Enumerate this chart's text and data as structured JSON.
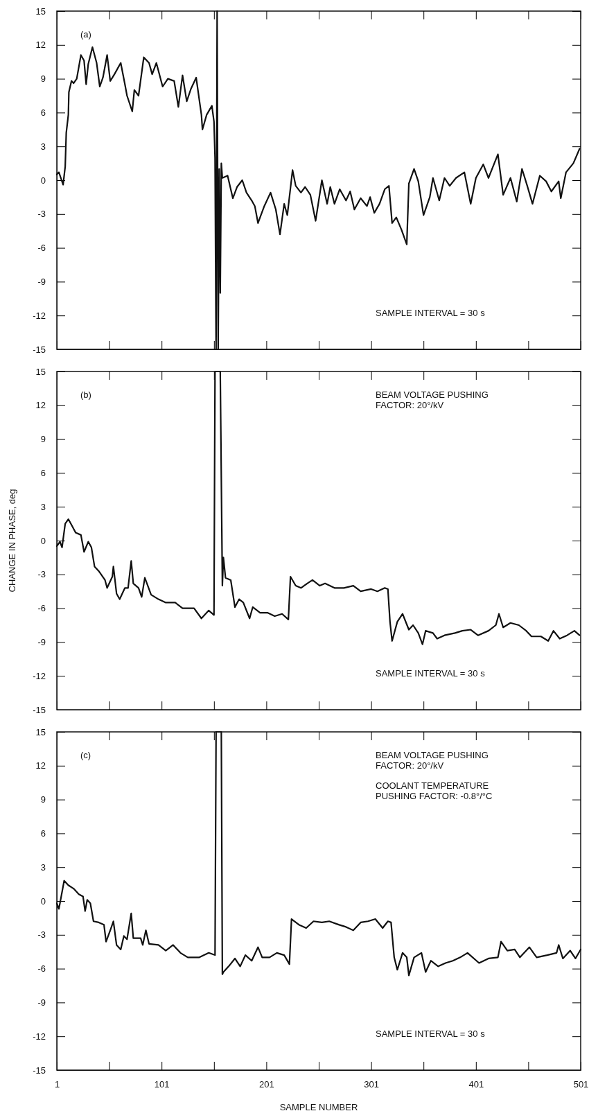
{
  "chart_data": [
    {
      "type": "line",
      "annotations": [
        "(a)",
        "SAMPLE INTERVAL = 30 s"
      ],
      "xlim": [
        1,
        501
      ],
      "xticks": [
        1,
        {
          "value": 51,
          "label": null
        },
        101,
        {
          "value": 151,
          "label": null
        },
        201,
        {
          "value": 251,
          "label": null
        },
        301,
        {
          "value": 351,
          "label": null
        },
        401,
        {
          "value": 451,
          "label": null
        },
        501
      ],
      "ylim": [
        -15,
        15
      ],
      "yticks": [
        -15,
        -12,
        -9,
        -6,
        -3,
        0,
        3,
        6,
        9,
        12,
        15
      ],
      "tick_labels": "y",
      "series": [
        {
          "color": "#111111",
          "x": [
            1,
            3,
            7,
            9,
            10,
            12,
            12.5,
            15,
            17,
            20,
            24,
            27,
            29,
            31,
            35,
            39,
            42,
            45,
            49,
            52,
            56,
            62,
            66,
            68,
            73,
            75,
            79,
            84,
            89,
            92,
            96,
            102,
            107,
            113,
            117,
            121,
            125,
            129,
            134,
            139,
            140,
            144,
            149,
            151,
            152,
            153,
            154,
            155,
            156,
            157,
            158,
            159,
            164,
            169,
            173,
            178,
            182,
            187,
            190,
            193,
            199,
            205,
            210,
            214,
            218,
            221,
            226,
            229,
            234,
            238,
            243,
            248,
            254,
            259,
            262,
            266,
            271,
            277,
            281,
            285,
            291,
            297,
            300,
            304,
            309,
            314,
            318,
            321,
            325,
            330,
            335,
            337,
            342,
            346,
            351,
            357,
            360,
            366,
            371,
            376,
            382,
            390,
            396,
            401,
            408,
            413,
            422,
            427,
            434,
            440,
            445,
            450,
            455,
            462,
            468,
            473,
            480,
            482,
            487,
            494,
            500
          ],
          "values": [
            0.5,
            0.7,
            -0.4,
            1.2,
            4.2,
            5.8,
            7.8,
            8.8,
            8.6,
            9.0,
            11.1,
            10.6,
            8.5,
            10.3,
            11.8,
            10.4,
            8.3,
            9.1,
            11.1,
            8.8,
            9.4,
            10.4,
            8.5,
            7.5,
            6.1,
            8.0,
            7.5,
            10.9,
            10.4,
            9.4,
            10.4,
            8.3,
            9.0,
            8.8,
            6.5,
            9.3,
            7.0,
            8.1,
            9.1,
            5.8,
            4.5,
            5.8,
            6.6,
            5.2,
            2.0,
            -15,
            15,
            -15,
            1.0,
            -10,
            1.5,
            0.2,
            0.4,
            -1.6,
            -0.6,
            0,
            -1.1,
            -1.8,
            -2.3,
            -3.8,
            -2.3,
            -1.1,
            -2.6,
            -4.8,
            -2.1,
            -3.1,
            0.9,
            -0.5,
            -1.1,
            -0.6,
            -1.3,
            -3.6,
            0,
            -2.1,
            -0.6,
            -2.1,
            -0.8,
            -1.8,
            -1.0,
            -2.6,
            -1.6,
            -2.3,
            -1.5,
            -2.9,
            -2.1,
            -0.8,
            -0.5,
            -3.8,
            -3.3,
            -4.4,
            -5.7,
            -0.3,
            1.0,
            -0.1,
            -3.1,
            -1.5,
            0.2,
            -1.8,
            0.2,
            -0.5,
            0.2,
            0.7,
            -2.1,
            0.2,
            1.4,
            0.2,
            2.3,
            -1.3,
            0.2,
            -1.9,
            1.0,
            -0.5,
            -2.1,
            0.4,
            -0.1,
            -1.0,
            -0.1,
            -1.6,
            0.7,
            1.5,
            2.8
          ]
        }
      ]
    },
    {
      "type": "line",
      "ylabel": "CHANGE IN PHASE, deg",
      "annotations": [
        "(b)",
        "BEAM VOLTAGE PUSHING\nFACTOR:  20°/kV",
        "SAMPLE INTERVAL = 30 s"
      ],
      "xlim": [
        1,
        501
      ],
      "xticks": [
        1,
        {
          "value": 51,
          "label": null
        },
        101,
        {
          "value": 151,
          "label": null
        },
        201,
        {
          "value": 251,
          "label": null
        },
        301,
        {
          "value": 351,
          "label": null
        },
        401,
        {
          "value": 451,
          "label": null
        },
        501
      ],
      "ylim": [
        -15,
        15
      ],
      "yticks": [
        -15,
        -12,
        -9,
        -6,
        -3,
        0,
        3,
        6,
        9,
        12,
        15
      ],
      "tick_labels": "y",
      "series": [
        {
          "color": "#111111",
          "x": [
            1,
            4,
            6,
            9,
            12,
            15,
            19,
            24,
            27,
            31,
            34,
            37,
            41,
            47,
            49,
            54,
            55,
            58,
            61,
            66,
            69,
            72,
            74,
            79,
            82,
            85,
            91,
            98,
            105,
            114,
            121,
            132,
            139,
            146,
            151,
            152,
            157,
            159,
            160,
            162,
            167,
            171,
            175,
            179,
            185,
            188,
            195,
            202,
            209,
            216,
            222,
            224,
            229,
            234,
            240,
            245,
            252,
            257,
            266,
            275,
            284,
            291,
            301,
            307,
            314,
            317,
            319,
            321,
            326,
            331,
            337,
            341,
            346,
            350,
            353,
            360,
            364,
            371,
            381,
            388,
            396,
            403,
            413,
            420,
            423,
            427,
            434,
            442,
            449,
            454,
            463,
            470,
            475,
            481,
            488,
            495,
            500
          ],
          "values": [
            -0.5,
            -0.1,
            -0.6,
            1.5,
            1.9,
            1.4,
            0.7,
            0.5,
            -1.0,
            -0.1,
            -0.6,
            -2.3,
            -2.7,
            -3.5,
            -4.2,
            -3.2,
            -2.3,
            -4.7,
            -5.2,
            -4.2,
            -4.2,
            -1.8,
            -3.8,
            -4.2,
            -5.0,
            -3.3,
            -4.8,
            -5.2,
            -5.5,
            -5.5,
            -6.0,
            -6.0,
            -6.9,
            -6.2,
            -6.6,
            15,
            15,
            -4.0,
            -1.5,
            -3.3,
            -3.5,
            -5.9,
            -5.2,
            -5.5,
            -6.9,
            -5.9,
            -6.4,
            -6.4,
            -6.7,
            -6.5,
            -7.0,
            -3.2,
            -4.0,
            -4.2,
            -3.8,
            -3.5,
            -4.0,
            -3.8,
            -4.2,
            -4.2,
            -4.0,
            -4.5,
            -4.3,
            -4.5,
            -4.2,
            -4.3,
            -7.2,
            -8.9,
            -7.2,
            -6.5,
            -7.9,
            -7.5,
            -8.2,
            -9.2,
            -8.0,
            -8.2,
            -8.7,
            -8.4,
            -8.2,
            -8.0,
            -7.9,
            -8.4,
            -8.0,
            -7.5,
            -6.5,
            -7.7,
            -7.3,
            -7.5,
            -8.0,
            -8.5,
            -8.5,
            -8.9,
            -8.0,
            -8.7,
            -8.4,
            -8.0,
            -8.4
          ]
        }
      ]
    },
    {
      "type": "line",
      "xlabel": "SAMPLE NUMBER",
      "annotations": [
        "(c)",
        "BEAM VOLTAGE PUSHING\nFACTOR:  20°/kV",
        "COOLANT TEMPERATURE\nPUSHING FACTOR:  -0.8°/°C",
        "SAMPLE INTERVAL = 30 s"
      ],
      "xlim": [
        1,
        501
      ],
      "xticks": [
        1,
        {
          "value": 51,
          "label": null
        },
        101,
        {
          "value": 151,
          "label": null
        },
        201,
        {
          "value": 251,
          "label": null
        },
        301,
        {
          "value": 351,
          "label": null
        },
        401,
        {
          "value": 451,
          "label": null
        },
        501
      ],
      "ylim": [
        -15,
        15
      ],
      "yticks": [
        -15,
        -12,
        -9,
        -6,
        -3,
        0,
        3,
        6,
        9,
        12,
        15
      ],
      "series": [
        {
          "color": "#111111",
          "x": [
            1,
            3,
            6,
            8,
            12,
            17,
            22,
            26,
            28,
            30,
            33,
            36,
            41,
            46,
            48,
            52,
            55,
            58,
            62,
            65,
            68,
            72,
            74,
            81,
            83,
            86,
            89,
            98,
            105,
            112,
            119,
            126,
            137,
            146,
            152,
            153,
            158,
            159,
            160,
            165,
            171,
            176,
            181,
            187,
            193,
            197,
            204,
            211,
            218,
            223,
            225,
            232,
            239,
            246,
            254,
            261,
            270,
            277,
            284,
            291,
            298,
            305,
            312,
            317,
            320,
            323,
            326,
            331,
            335,
            337,
            342,
            349,
            353,
            358,
            365,
            372,
            379,
            386,
            393,
            404,
            413,
            422,
            425,
            431,
            438,
            443,
            452,
            459,
            469,
            478,
            480,
            484,
            491,
            496,
            501
          ],
          "values": [
            -0.2,
            -0.7,
            0.8,
            1.8,
            1.4,
            1.1,
            0.6,
            0.4,
            -0.9,
            0.1,
            -0.2,
            -1.8,
            -1.9,
            -2.1,
            -3.6,
            -2.6,
            -1.8,
            -3.9,
            -4.3,
            -3.1,
            -3.4,
            -1.1,
            -3.3,
            -3.3,
            -3.9,
            -2.6,
            -3.8,
            -3.9,
            -4.4,
            -3.9,
            -4.6,
            -5.0,
            -5.0,
            -4.6,
            -4.8,
            15,
            15,
            -6.5,
            -6.3,
            -5.8,
            -5.1,
            -5.8,
            -4.8,
            -5.3,
            -4.1,
            -5.0,
            -5.0,
            -4.6,
            -4.8,
            -5.6,
            -1.6,
            -2.1,
            -2.4,
            -1.8,
            -1.9,
            -1.8,
            -2.1,
            -2.3,
            -2.6,
            -1.9,
            -1.8,
            -1.6,
            -2.4,
            -1.8,
            -1.9,
            -5.0,
            -6.1,
            -4.6,
            -5.0,
            -6.6,
            -5.0,
            -4.6,
            -6.3,
            -5.3,
            -5.8,
            -5.5,
            -5.3,
            -5.0,
            -4.6,
            -5.5,
            -5.1,
            -5.0,
            -3.6,
            -4.4,
            -4.3,
            -5.0,
            -4.1,
            -5.0,
            -4.8,
            -4.6,
            -3.9,
            -5.1,
            -4.4,
            -5.1,
            -4.3
          ]
        }
      ]
    }
  ]
}
